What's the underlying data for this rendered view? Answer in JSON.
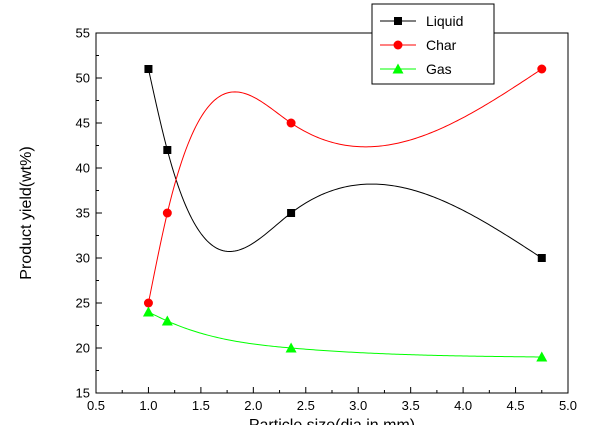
{
  "chart_data": {
    "type": "line",
    "title": "",
    "xlabel": "Particle size(dia in mm)",
    "ylabel": "Product yield(wt%)",
    "xlim": [
      0.5,
      5.0
    ],
    "ylim": [
      15,
      55
    ],
    "xticks": [
      "0.5",
      "1.0",
      "1.5",
      "2.0",
      "2.5",
      "3.0",
      "3.5",
      "4.0",
      "4.5",
      "5.0"
    ],
    "yticks": [
      "15",
      "20",
      "25",
      "30",
      "35",
      "40",
      "45",
      "50",
      "55"
    ],
    "grid": false,
    "legend_position": "top-right",
    "x": [
      1.0,
      1.18,
      2.36,
      4.75
    ],
    "series": [
      {
        "name": "Liquid",
        "values": [
          51,
          42,
          35,
          30
        ],
        "color": "#000000",
        "marker": "square"
      },
      {
        "name": "Char",
        "values": [
          25,
          35,
          45,
          51
        ],
        "color": "#ff0000",
        "marker": "circle"
      },
      {
        "name": "Gas",
        "values": [
          24,
          23,
          20,
          19
        ],
        "color": "#00ff00",
        "marker": "triangle"
      }
    ]
  }
}
